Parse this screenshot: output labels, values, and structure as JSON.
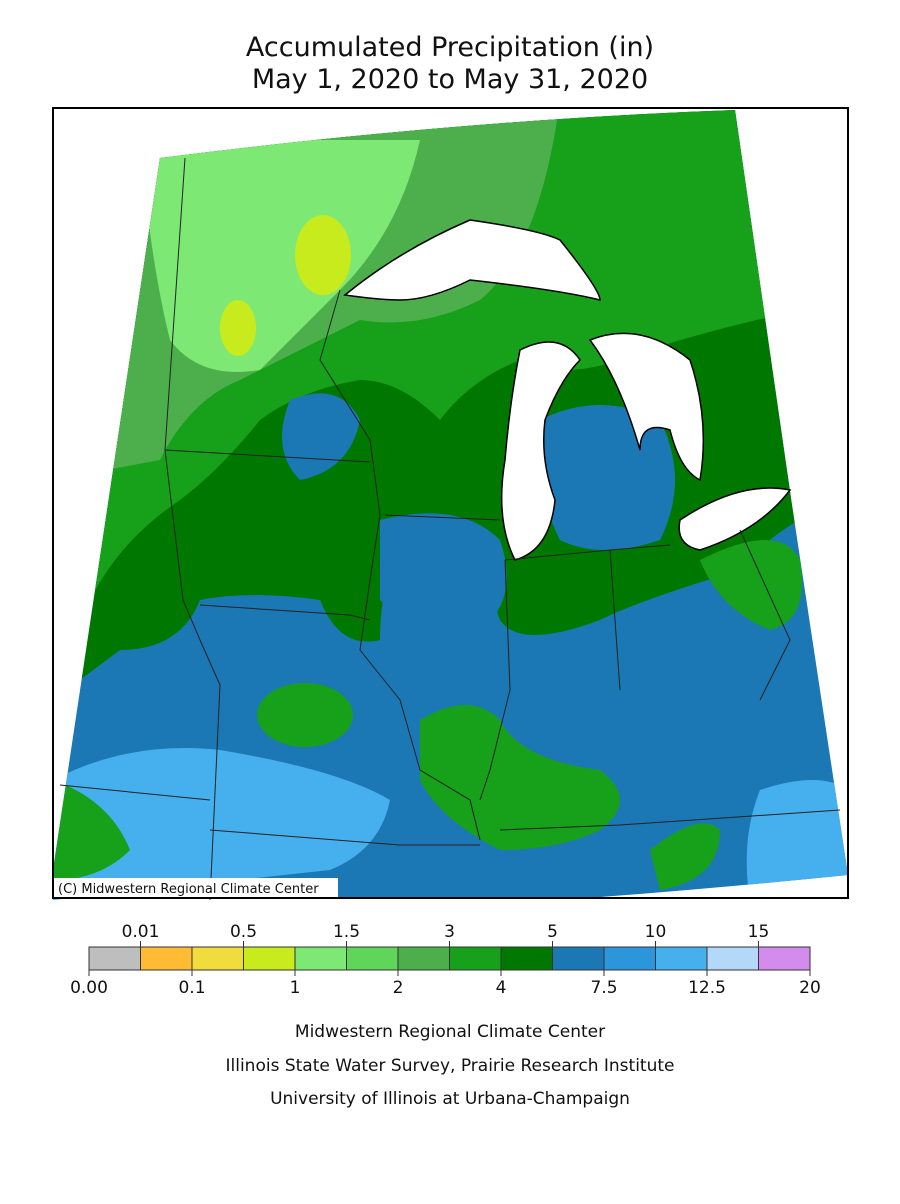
{
  "title": {
    "line1": "Accumulated Precipitation (in)",
    "line2": "May 1, 2020 to May 31, 2020"
  },
  "map": {
    "credit": "(C) Midwestern Regional Climate Center"
  },
  "legend": {
    "colors": [
      "#bebebe",
      "#ffbb33",
      "#f0dc3c",
      "#c8eb1e",
      "#7de874",
      "#5fd65a",
      "#4caf4c",
      "#17a01a",
      "#007800",
      "#1c78b4",
      "#2c96dc",
      "#46b0ee",
      "#b4d8f8",
      "#d48cec"
    ],
    "top_labels": [
      "0.01",
      "0.5",
      "1.5",
      "3",
      "5",
      "10",
      "15"
    ],
    "bottom_labels": [
      "0.00",
      "0.1",
      "1",
      "2",
      "4",
      "7.5",
      "12.5",
      "20"
    ]
  },
  "footer": {
    "line1": "Midwestern Regional Climate Center",
    "line2": "Illinois State Water Survey, Prairie Research Institute",
    "line3": "University of Illinois at Urbana-Champaign"
  }
}
